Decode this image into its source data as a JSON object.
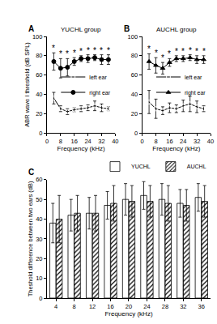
{
  "chart_data": [
    {
      "type": "line",
      "label": "A",
      "title": "YUCHL group",
      "x_label": "Frequency (kHz)",
      "y_label": "ABR wave I threshold (dB SPL)",
      "x": [
        4,
        8,
        12,
        16,
        20,
        24,
        28,
        32,
        36
      ],
      "series": [
        {
          "name": "left ear",
          "color": "#000000",
          "marker": "circle-open",
          "line_style": "solid",
          "values": [
            36,
            25,
            22,
            24,
            25,
            26,
            28,
            26,
            25
          ],
          "errors": [
            6,
            3,
            3,
            2,
            3,
            3,
            5,
            4,
            2
          ]
        },
        {
          "name": "right ear",
          "color": "#000000",
          "marker": "circle",
          "line_style": "solid",
          "values": [
            74,
            67,
            68,
            74,
            77,
            77,
            78,
            76,
            76
          ],
          "errors": [
            9,
            10,
            9,
            4,
            3,
            4,
            3,
            5,
            5
          ]
        }
      ],
      "xlim": [
        0,
        40
      ],
      "xticks": [
        0,
        8,
        16,
        24,
        32,
        40
      ],
      "ylim": [
        0,
        100
      ],
      "yticks": [
        0,
        20,
        40,
        60,
        80,
        100
      ],
      "legend": "right",
      "annotations": [
        {
          "text": "*",
          "x": 4
        },
        {
          "text": "*",
          "x": 8
        },
        {
          "text": "*",
          "x": 12
        },
        {
          "text": "*",
          "x": 16
        },
        {
          "text": "*",
          "x": 20
        },
        {
          "text": "*",
          "x": 24
        },
        {
          "text": "*",
          "x": 28
        },
        {
          "text": "*",
          "x": 32
        },
        {
          "text": "*",
          "x": 36
        }
      ]
    },
    {
      "type": "line",
      "label": "B",
      "title": "AUCHL group",
      "x_label": "Frequency (kHz)",
      "x": [
        4,
        8,
        12,
        16,
        20,
        24,
        28,
        32,
        36
      ],
      "series": [
        {
          "name": "left ear",
          "color": "#000000",
          "marker": "circle-open",
          "line_style": "solid",
          "values": [
            32,
            25,
            23,
            26,
            25,
            28,
            30,
            27,
            25
          ],
          "errors": [
            12,
            10,
            4,
            5,
            4,
            6,
            8,
            6,
            3
          ]
        },
        {
          "name": "right ear",
          "color": "#000000",
          "marker": "triangle-up",
          "line_style": "solid",
          "values": [
            74,
            70,
            67,
            73,
            77,
            77,
            78,
            76,
            76
          ],
          "errors": [
            8,
            8,
            6,
            4,
            3,
            3,
            3,
            4,
            4
          ]
        }
      ],
      "xlim": [
        0,
        40
      ],
      "xticks": [
        0,
        8,
        16,
        24,
        32,
        40
      ],
      "ylim": [
        0,
        100
      ],
      "yticks": [
        0,
        20,
        40,
        60,
        80,
        100
      ],
      "legend": "right",
      "annotations": [
        {
          "text": "*",
          "x": 4
        },
        {
          "text": "*",
          "x": 8
        },
        {
          "text": "*",
          "x": 12
        },
        {
          "text": "*",
          "x": 16
        },
        {
          "text": "*",
          "x": 20
        },
        {
          "text": "*",
          "x": 24
        },
        {
          "text": "*",
          "x": 28
        },
        {
          "text": "*",
          "x": 32
        },
        {
          "text": "*",
          "x": 36
        }
      ]
    },
    {
      "type": "bar",
      "label": "C",
      "x_label": "Frequency (kHz)",
      "y_label": "Theshold difference between two ears (dB)",
      "categories": [
        "4",
        "8",
        "12",
        "16",
        "20",
        "24",
        "28",
        "32",
        "36"
      ],
      "series": [
        {
          "name": "YUCHL",
          "color": "#ffffff",
          "values": [
            38,
            42,
            43,
            47,
            50,
            52,
            50,
            48,
            51
          ],
          "errors": [
            10,
            8,
            8,
            7,
            8,
            7,
            8,
            7,
            7
          ]
        },
        {
          "name": "AUCHL",
          "color": "#ffffff",
          "marker": "hatched",
          "values": [
            40,
            43,
            43,
            48,
            49,
            49,
            48,
            47,
            49
          ],
          "errors": [
            12,
            9,
            9,
            9,
            8,
            8,
            9,
            8,
            8
          ]
        }
      ],
      "ylim": [
        0,
        60
      ],
      "yticks": [
        0,
        10,
        20,
        30,
        40,
        50,
        60
      ],
      "legend": "top right"
    }
  ]
}
